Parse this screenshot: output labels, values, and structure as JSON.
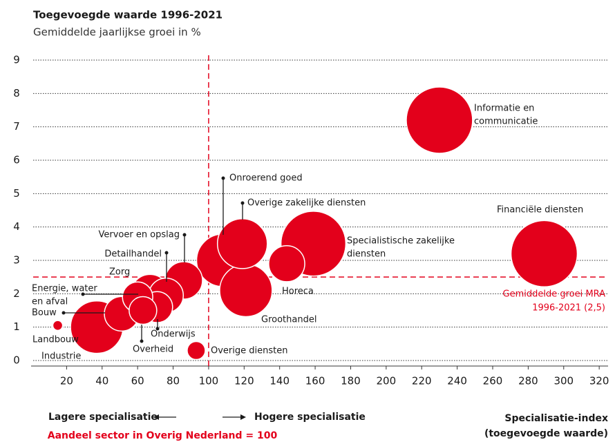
{
  "chart_data": {
    "type": "bubble",
    "title": "Toegevoegde waarde 1996-2021",
    "subtitle": "Gemiddelde jaarlijkse groei in %",
    "color": "#e3001b",
    "xlim": [
      0,
      325
    ],
    "ylim": [
      0,
      9
    ],
    "xticks": [
      20,
      40,
      60,
      80,
      100,
      120,
      140,
      160,
      180,
      200,
      220,
      240,
      260,
      280,
      300,
      320
    ],
    "yticks": [
      0,
      1,
      2,
      3,
      4,
      5,
      6,
      7,
      8,
      9
    ],
    "grid": true,
    "labels": [
      [
        "Landbouw"
      ],
      [
        "Industrie"
      ],
      [
        "Bouw"
      ],
      [
        "Energie, water",
        "en afval"
      ],
      [
        "Overheid"
      ],
      [
        "Zorg"
      ],
      [
        "Onderwijs"
      ],
      [
        "Detailhandel"
      ],
      [
        "Vervoer en opslag"
      ],
      [
        "Overige diensten"
      ],
      [
        "Onroerend goed"
      ],
      [
        "Overige zakelijke diensten"
      ],
      [
        "Groothandel"
      ],
      [
        "Horeca"
      ],
      [
        "Specialistische zakelijke",
        "diensten"
      ],
      [
        "Informatie en",
        "communicatie"
      ],
      [
        "Financiële diensten"
      ]
    ],
    "x": [
      15,
      37,
      51,
      60,
      63,
      67,
      71,
      76,
      86,
      93,
      108,
      119,
      121,
      144,
      159,
      230,
      289
    ],
    "y": [
      1.05,
      1.0,
      1.4,
      1.9,
      1.5,
      2.0,
      1.6,
      1.95,
      2.4,
      0.3,
      3.0,
      3.5,
      2.1,
      2.9,
      3.5,
      7.2,
      3.2
    ],
    "sizes": [
      0.5,
      14.4,
      6.25,
      4.8,
      4,
      7.8,
      5,
      6.25,
      7.3,
      1.7,
      14.4,
      13,
      14.4,
      6.8,
      22,
      23,
      23
    ],
    "vline": {
      "value": 100
    },
    "hline": {
      "value": 2.5,
      "label": [
        "Gemiddelde groei MRA",
        "1996-2021 (2,5)"
      ]
    },
    "left_note": "Lagere specialisatie",
    "right_note": "Hogere specialisatie",
    "reference_note": "Aandeel sector in Overig Nederland = 100",
    "x_label": [
      "Specialisatie-index",
      "(toegevoegde waarde)"
    ]
  }
}
